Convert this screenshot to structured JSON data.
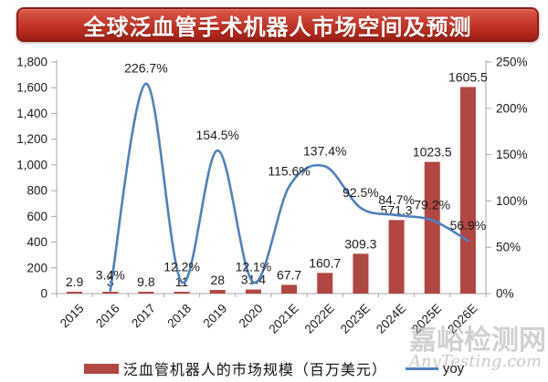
{
  "chart_data": {
    "type": "bar+line combo",
    "title": "全球泛血管手术机器人市场空间及预测",
    "categories": [
      "2015",
      "2016",
      "2017",
      "2018",
      "2019",
      "2020",
      "2021E",
      "2022E",
      "2023E",
      "2024E",
      "2025E",
      "2026E"
    ],
    "series": [
      {
        "name": "泛血管机器人的市场规模（百万美元）",
        "type": "bar",
        "axis": "left",
        "color": "#b04743",
        "values": [
          2.9,
          3,
          9.8,
          11,
          28,
          31.4,
          67.7,
          160.7,
          309.3,
          571.3,
          1023.5,
          1605.5
        ],
        "labels": [
          "2.9",
          "3",
          "9.8",
          "11",
          "28",
          "31.4",
          "67.7",
          "160.7",
          "309.3",
          "571.3",
          "1023.5",
          "1605.5"
        ]
      },
      {
        "name": "yoy",
        "type": "line",
        "axis": "right",
        "color": "#4f81bd",
        "start_index": 1,
        "values": [
          3.4,
          226.7,
          12.2,
          154.5,
          12.1,
          115.6,
          137.4,
          92.5,
          84.7,
          79.2,
          56.9
        ],
        "labels": [
          "3.4%",
          "226.7%",
          "12.2%",
          "154.5%",
          "12.1%",
          "115.6%",
          "137.4%",
          "92.5%",
          "84.7%",
          "79.2%",
          "56.9%"
        ]
      }
    ],
    "left_axis": {
      "min": 0,
      "max": 1800,
      "tick_labels": [
        "0",
        "200",
        "400",
        "600",
        "800",
        "1,000",
        "1,200",
        "1,400",
        "1,600",
        "1,800"
      ]
    },
    "right_axis": {
      "min": 0,
      "max": 250,
      "tick_labels": [
        "0%",
        "50%",
        "100%",
        "150%",
        "200%",
        "250%"
      ]
    },
    "grid": false,
    "legend_position": "bottom"
  },
  "watermark": {
    "line1": "嘉峪检测网",
    "line2": "AnyTesting.com"
  },
  "colors": {
    "bar": "#b04743",
    "line": "#4f81bd",
    "axis": "#a6a6a6",
    "label": "#1a1a1a",
    "banner_border": "#8e1d13",
    "banner_fill": "#c8382c",
    "title_text": "#ffffff"
  }
}
